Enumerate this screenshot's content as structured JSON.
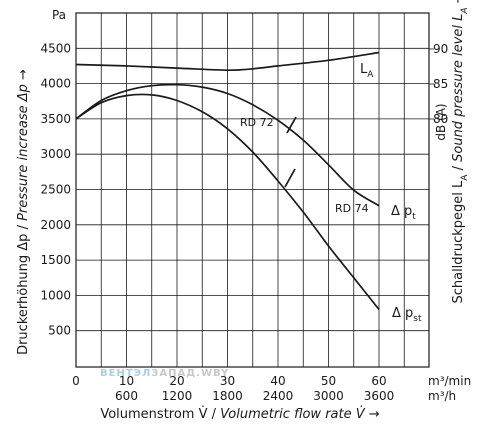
{
  "chart_data": {
    "type": "line",
    "x_unit_primary": "m³/min",
    "x_unit_secondary": "m³/h",
    "x_ticks_primary": [
      0,
      10,
      20,
      30,
      40,
      50,
      60
    ],
    "x_ticks_secondary": [
      600,
      1200,
      1800,
      2400,
      3000,
      3600
    ],
    "xlim": [
      0,
      70
    ],
    "y_unit_left": "Pa",
    "y_ticks_left": [
      500,
      1000,
      1500,
      2000,
      2500,
      3000,
      3500,
      4000,
      4500
    ],
    "ylim_left": [
      0,
      5000
    ],
    "y_unit_right": "dB (A)",
    "y_ticks_right": [
      80,
      85,
      90
    ],
    "xlabel_parts": [
      "Volumenstrom V̇ / ",
      "Volumetric flow rate V̇",
      " →"
    ],
    "ylabel_left_parts": [
      "Druckerhöhung Δp / ",
      "Pressure increase Δp",
      "  →"
    ],
    "ylabel_right_parts": [
      "Schalldruckpegel L",
      "A",
      " / ",
      "Sound pressure level L",
      "A",
      "  →"
    ],
    "series": [
      {
        "name": "Δ pt",
        "name_main": "Δ p",
        "name_sub": "t",
        "x": [
          0,
          5,
          10,
          15,
          20,
          25,
          30,
          35,
          40,
          45,
          50,
          55,
          60
        ],
        "y": [
          3500,
          3760,
          3900,
          3970,
          3985,
          3950,
          3860,
          3700,
          3480,
          3200,
          2850,
          2490,
          2270
        ]
      },
      {
        "name": "Δ pst",
        "name_main": "Δ p",
        "name_sub": "st",
        "x": [
          0,
          5,
          10,
          15,
          20,
          25,
          30,
          35,
          40,
          45,
          50,
          55,
          60
        ],
        "y": [
          3500,
          3730,
          3830,
          3840,
          3760,
          3600,
          3360,
          3030,
          2620,
          2180,
          1700,
          1250,
          800
        ]
      },
      {
        "name": "LA",
        "name_main": "L",
        "name_sub": "A",
        "axis": "right",
        "x": [
          0,
          10,
          20,
          30,
          35,
          40,
          50,
          60
        ],
        "y_pa_equiv": [
          4270,
          4250,
          4220,
          4190,
          4210,
          4250,
          4330,
          4440
        ]
      }
    ],
    "annotations": [
      "RD 72",
      "RD 74"
    ],
    "watermark": [
      "ВЕНТЭЛ",
      "ЗАПАД",
      ".WBY"
    ]
  }
}
